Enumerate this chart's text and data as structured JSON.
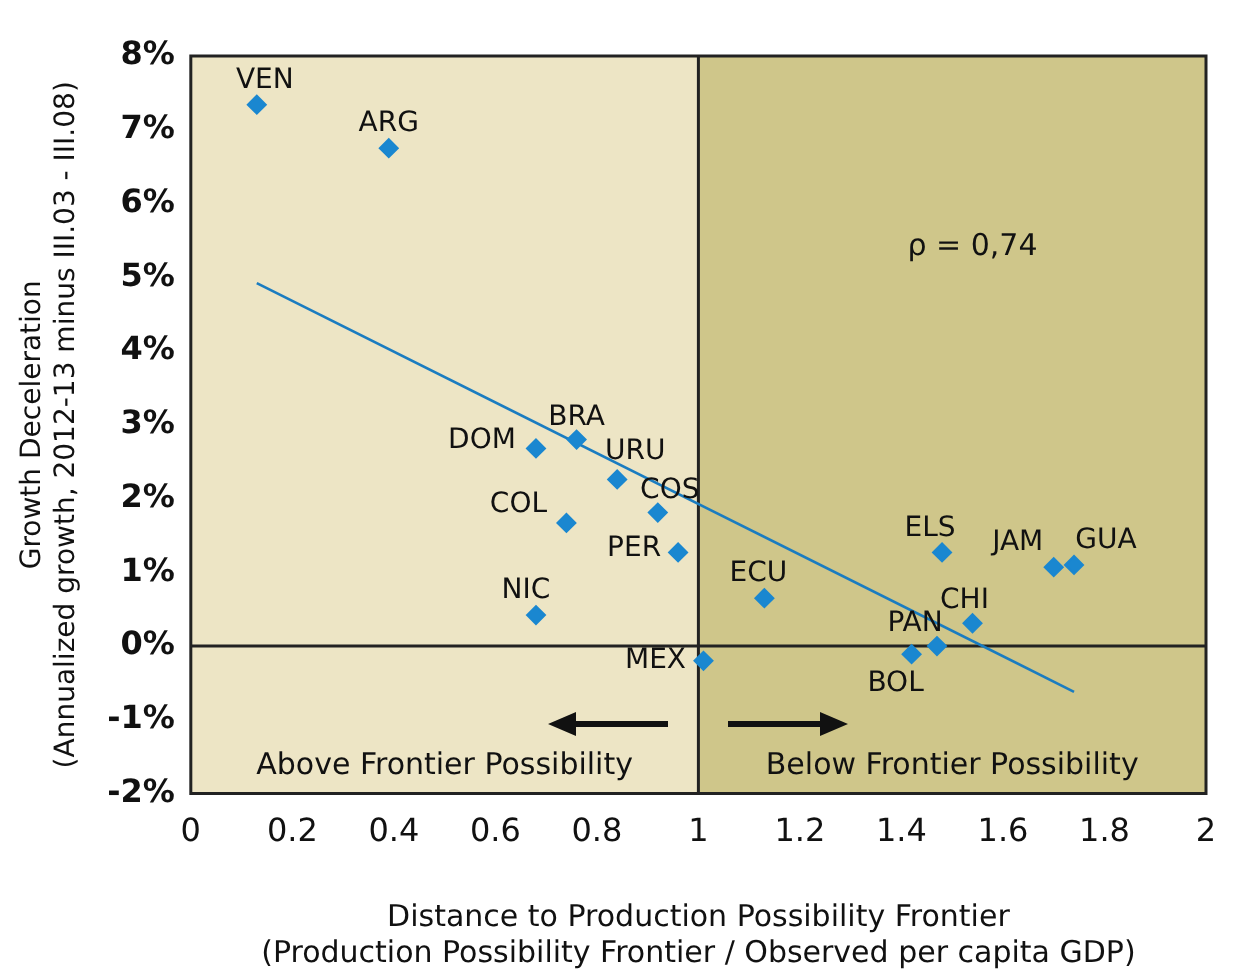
{
  "chart_data": {
    "type": "scatter",
    "xlabel": "Distance to Production Possibility Frontier\n(Production Possibility Frontier / Observed per capita GDP)",
    "ylabel": "Growth Deceleration\n(Annualized growth, 2012-13 minus III.03 - III.08)",
    "xlim": [
      0,
      2
    ],
    "xticks": [
      0,
      0.2,
      0.4,
      0.6,
      0.8,
      1,
      1.2,
      1.4,
      1.6,
      1.8,
      2
    ],
    "ylim": [
      -2,
      8
    ],
    "yticks": [
      {
        "value": -2,
        "label": "-2%"
      },
      {
        "value": -1,
        "label": "-1%"
      },
      {
        "value": 0,
        "label": "0%"
      },
      {
        "value": 1,
        "label": "1%"
      },
      {
        "value": 2,
        "label": "2%"
      },
      {
        "value": 3,
        "label": "3%"
      },
      {
        "value": 4,
        "label": "4%"
      },
      {
        "value": 5,
        "label": "5%"
      },
      {
        "value": 6,
        "label": "6%"
      },
      {
        "value": 7,
        "label": "7%"
      },
      {
        "value": 8,
        "label": "8%"
      }
    ],
    "grid": false,
    "legend": false,
    "marker": "diamond",
    "series": [
      {
        "type": "scatter",
        "color": "#1a87d0",
        "x": [
          0.13,
          0.39,
          0.68,
          0.76,
          0.84,
          0.92,
          0.96,
          0.74,
          0.68,
          1.01,
          1.13,
          1.48,
          1.7,
          1.74,
          1.54,
          1.47,
          1.42
        ],
        "values": [
          7.34,
          6.75,
          2.68,
          2.8,
          2.26,
          1.81,
          1.27,
          1.67,
          0.42,
          -0.2,
          0.65,
          1.27,
          1.07,
          1.1,
          0.31,
          0.0,
          -0.11
        ]
      },
      {
        "type": "line",
        "color": "#1a7cc0",
        "x": [
          0.13,
          1.74
        ],
        "values": [
          4.92,
          -0.62
        ],
        "marker": "none"
      }
    ],
    "annotations": [
      {
        "text": "VEN",
        "x": 0.13,
        "y": 7.34
      },
      {
        "text": "ARG",
        "x": 0.39,
        "y": 6.75
      },
      {
        "text": "DOM",
        "x": 0.68,
        "y": 2.68
      },
      {
        "text": "BRA",
        "x": 0.76,
        "y": 2.8
      },
      {
        "text": "URU",
        "x": 0.84,
        "y": 2.26
      },
      {
        "text": "COS",
        "x": 0.92,
        "y": 1.81
      },
      {
        "text": "PER",
        "x": 0.96,
        "y": 1.27
      },
      {
        "text": "COL",
        "x": 0.74,
        "y": 1.67
      },
      {
        "text": "NIC",
        "x": 0.68,
        "y": 0.42
      },
      {
        "text": "MEX",
        "x": 1.01,
        "y": -0.2
      },
      {
        "text": "ECU",
        "x": 1.13,
        "y": 0.65
      },
      {
        "text": "ELS",
        "x": 1.48,
        "y": 1.27
      },
      {
        "text": "JAM",
        "x": 1.7,
        "y": 1.07
      },
      {
        "text": "GUA",
        "x": 1.74,
        "y": 1.1
      },
      {
        "text": "CHI",
        "x": 1.54,
        "y": 0.31
      },
      {
        "text": "PAN",
        "x": 1.47,
        "y": 0.0
      },
      {
        "text": "BOL",
        "x": 1.42,
        "y": -0.11
      },
      "ρ = 0,74"
    ],
    "ref_lines": [
      {
        "axis": "x",
        "value": 1,
        "color": "#222222"
      },
      {
        "axis": "y",
        "value": 0,
        "color": "#222222"
      }
    ],
    "bands": [
      {
        "axis": "x",
        "from": 0,
        "to": 1,
        "label": "Above Frontier Possibility",
        "color": "#ede5c5"
      },
      {
        "axis": "x",
        "from": 1,
        "to": 2,
        "label": "Below Frontier Possibility",
        "color": "#cfc68a"
      }
    ]
  }
}
